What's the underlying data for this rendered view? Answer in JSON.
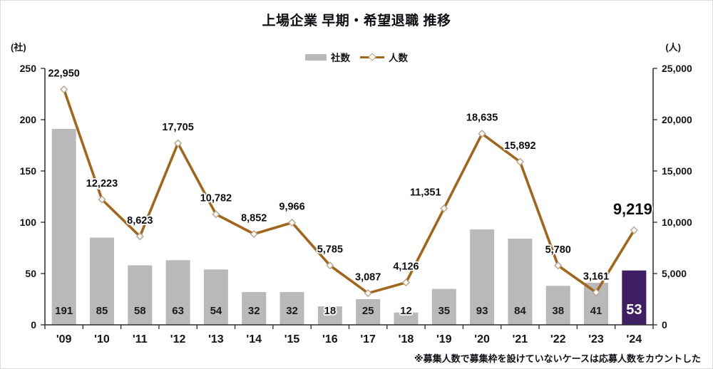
{
  "title": "上場企業 早期・希望退職 推移",
  "left_axis_unit": "(社)",
  "right_axis_unit": "(人)",
  "legend": {
    "bar_label": "社数",
    "line_label": "人数"
  },
  "footnote": "※募集人数で募集枠を設けていないケースは応募人数をカウントした",
  "colors": {
    "bar": "#b9b9b9",
    "bar_highlight": "#3e1f63",
    "line": "#a2661b",
    "marker_fill": "#fdf8f0",
    "marker_stroke": "#b4a78f",
    "axis": "#2b2b2b",
    "text": "#141414",
    "bar_label": "#1a1a1a",
    "bar_label_highlight": "#ffffff"
  },
  "chart_data": {
    "type": "bar+line combo",
    "title": "上場企業 早期・希望退職 推移",
    "categories": [
      "'09",
      "'10",
      "'11",
      "'12",
      "'13",
      "'14",
      "'15",
      "'16",
      "'17",
      "'18",
      "'19",
      "'20",
      "'21",
      "'22",
      "'23",
      "'24"
    ],
    "series": [
      {
        "name": "社数",
        "type": "bar",
        "axis": "left",
        "values": [
          191,
          85,
          58,
          63,
          54,
          32,
          32,
          18,
          25,
          12,
          35,
          93,
          84,
          38,
          41,
          53
        ]
      },
      {
        "name": "人数",
        "type": "line",
        "axis": "right",
        "values": [
          22950,
          12223,
          8623,
          17705,
          10782,
          8852,
          9966,
          5785,
          3087,
          4126,
          11351,
          18635,
          15892,
          5780,
          3161,
          9219
        ]
      }
    ],
    "left_axis": {
      "unit": "(社)",
      "min": 0,
      "max": 250,
      "ticks": [
        0,
        50,
        100,
        150,
        200,
        250
      ]
    },
    "right_axis": {
      "unit": "(人)",
      "min": 0,
      "max": 25000,
      "ticks": [
        0,
        5000,
        10000,
        15000,
        20000,
        25000
      ],
      "tick_format": "comma"
    },
    "highlight_index": 15,
    "legend_position": "top-center",
    "grid": false,
    "data_labels": true
  }
}
